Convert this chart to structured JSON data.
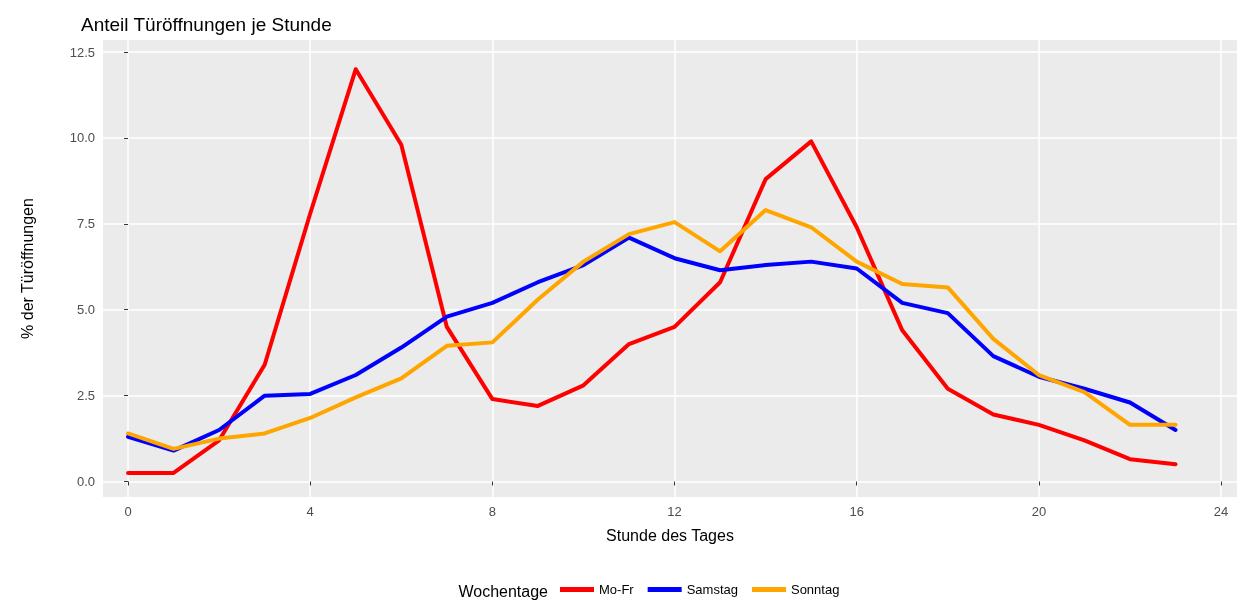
{
  "chart_data": {
    "type": "line",
    "title": "Anteil Türöffnungen je Stunde",
    "xlabel": "Stunde des Tages",
    "ylabel": "% der Türöffnungen",
    "legend_title": "Wochentage",
    "x": [
      0,
      1,
      2,
      3,
      4,
      5,
      6,
      7,
      8,
      9,
      10,
      11,
      12,
      13,
      14,
      15,
      16,
      17,
      18,
      19,
      20,
      21,
      22,
      23
    ],
    "series": [
      {
        "name": "Mo-Fr",
        "color": "#ff0000",
        "values": [
          0.25,
          0.25,
          1.2,
          3.4,
          7.8,
          12.0,
          9.8,
          4.5,
          2.4,
          2.2,
          2.8,
          4.0,
          4.5,
          5.8,
          8.8,
          9.9,
          7.4,
          4.4,
          2.7,
          1.95,
          1.65,
          1.2,
          0.65,
          0.5
        ]
      },
      {
        "name": "Samstag",
        "color": "#0000ff",
        "values": [
          1.3,
          0.9,
          1.5,
          2.5,
          2.55,
          3.1,
          3.9,
          4.8,
          5.2,
          5.8,
          6.3,
          7.1,
          6.5,
          6.15,
          6.3,
          6.4,
          6.2,
          5.2,
          4.9,
          3.65,
          3.05,
          2.7,
          2.3,
          1.5
        ]
      },
      {
        "name": "Sonntag",
        "color": "#ffa500",
        "values": [
          1.4,
          0.95,
          1.25,
          1.4,
          1.85,
          2.45,
          3.0,
          3.95,
          4.05,
          5.3,
          6.4,
          7.2,
          7.55,
          6.7,
          7.9,
          7.4,
          6.4,
          5.75,
          5.65,
          4.15,
          3.1,
          2.6,
          1.65,
          1.65
        ]
      }
    ],
    "xlim": [
      -0.55,
      24.35
    ],
    "xticks": [
      0,
      4,
      8,
      12,
      16,
      20,
      24
    ],
    "ylim": [
      -0.45,
      12.85
    ],
    "yticks": [
      {
        "value": 0,
        "label": "0.0"
      },
      {
        "value": 2.5,
        "label": "2.5"
      },
      {
        "value": 5,
        "label": "5.0"
      },
      {
        "value": 7.5,
        "label": "7.5"
      },
      {
        "value": 10,
        "label": "10.0"
      },
      {
        "value": 12.5,
        "label": "12.5"
      }
    ],
    "grid": true,
    "legend": "bottom",
    "line_style": "solid",
    "marker": "none"
  }
}
